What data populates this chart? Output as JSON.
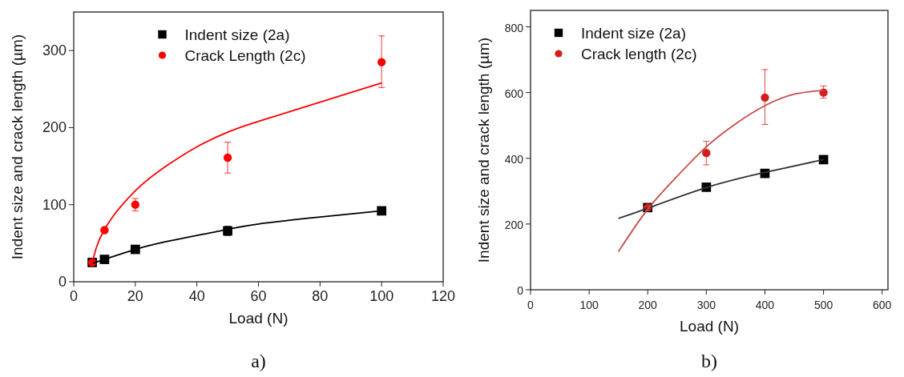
{
  "chart_data": [
    {
      "type": "scatter",
      "xlabel": "Load (N)",
      "ylabel": "Indent size and crack length (µm)",
      "xlim": [
        0,
        120
      ],
      "xticks": [
        0,
        20,
        40,
        60,
        80,
        100,
        120
      ],
      "ylim": [
        0,
        350
      ],
      "yticks": [
        0,
        100,
        200,
        300
      ],
      "legend": "top",
      "grid": false,
      "annotations": [
        "a)"
      ],
      "series": [
        {
          "name": "Indent size (2a)",
          "marker": "square",
          "color": "#000000",
          "x": [
            6,
            10,
            20,
            50,
            100
          ],
          "values": [
            25,
            29,
            42,
            66,
            92
          ],
          "errors": [
            null,
            null,
            null,
            6,
            null
          ]
        },
        {
          "name": "Crack Length (2c)",
          "marker": "circle",
          "color": "#ff0000",
          "x": [
            6,
            10,
            20,
            50,
            100
          ],
          "values": [
            25,
            67,
            100,
            161,
            285
          ],
          "errors": [
            null,
            null,
            8,
            20,
            [
              252,
              319
            ]
          ]
        },
        {
          "type": "line",
          "color": "#000000",
          "x": [
            6,
            10,
            20,
            30,
            40,
            50,
            60,
            80,
            100
          ],
          "values": [
            24,
            29,
            42,
            52,
            60,
            68,
            75,
            84,
            92
          ]
        },
        {
          "type": "line",
          "color": "#ff0000",
          "x": [
            6,
            10,
            20,
            30,
            40,
            50,
            60,
            80,
            100
          ],
          "values": [
            24,
            68,
            118,
            150,
            175,
            194,
            208,
            233,
            258
          ]
        }
      ]
    },
    {
      "type": "scatter",
      "xlabel": "Load (N)",
      "ylabel": "Indent size and crack length (µm)",
      "xlim": [
        0,
        610
      ],
      "xticks": [
        0,
        100,
        200,
        300,
        400,
        500,
        600
      ],
      "ylim": [
        0,
        850
      ],
      "yticks": [
        0,
        200,
        400,
        600,
        800
      ],
      "legend": "top left",
      "grid": false,
      "annotations": [
        "b)"
      ],
      "series": [
        {
          "name": "Indent size (2a)",
          "marker": "square",
          "color": "#000000",
          "x": [
            200,
            300,
            400,
            500
          ],
          "values": [
            250,
            312,
            354,
            396
          ]
        },
        {
          "name": "Crack length (2c)",
          "marker": "circle",
          "color": "#d21e1e",
          "x": [
            200,
            300,
            400,
            500
          ],
          "values": [
            250,
            416,
            585,
            600
          ],
          "errors": [
            null,
            [
              380,
              452
            ],
            [
              503,
              670
            ],
            [
              583,
              620
            ]
          ]
        },
        {
          "type": "line",
          "color": "#333333",
          "x": [
            150,
            200,
            300,
            400,
            500
          ],
          "values": [
            217,
            248,
            311,
            357,
            396
          ]
        },
        {
          "type": "line",
          "color": "#c84b4b",
          "x": [
            150,
            200,
            250,
            300,
            350,
            400,
            450,
            500
          ],
          "values": [
            116,
            245,
            345,
            435,
            505,
            560,
            595,
            607
          ]
        }
      ]
    }
  ]
}
